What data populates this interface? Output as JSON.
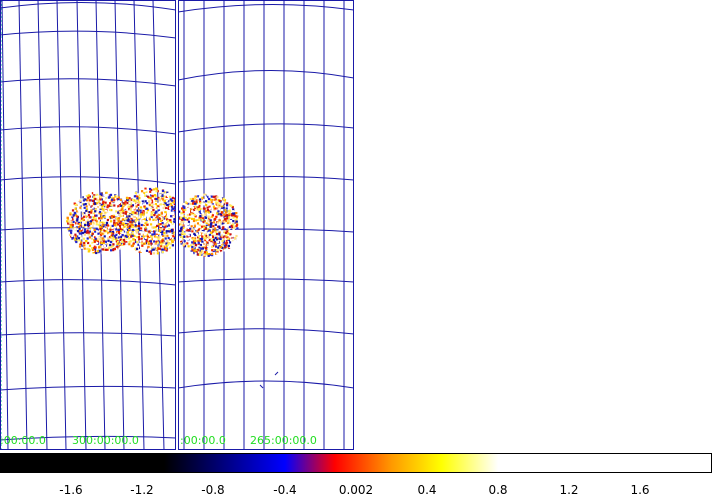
{
  "panels": [
    {
      "id": "left",
      "coord_labels": [
        ":00:00.0",
        "300:00:00.0"
      ]
    },
    {
      "id": "right",
      "coord_labels": [
        ":00:00.0",
        "265:00:00.0"
      ]
    }
  ],
  "colorbar": {
    "tick_labels": [
      "-1.6",
      "-1.2",
      "-0.8",
      "-0.4",
      "0.002",
      "0.4",
      "0.8",
      "1.2",
      "1.6"
    ]
  },
  "colors": {
    "grid": "#1a1aa8",
    "coord_label": "#22dd22",
    "frame": "#1a1aa8",
    "background": "#ffffff"
  }
}
